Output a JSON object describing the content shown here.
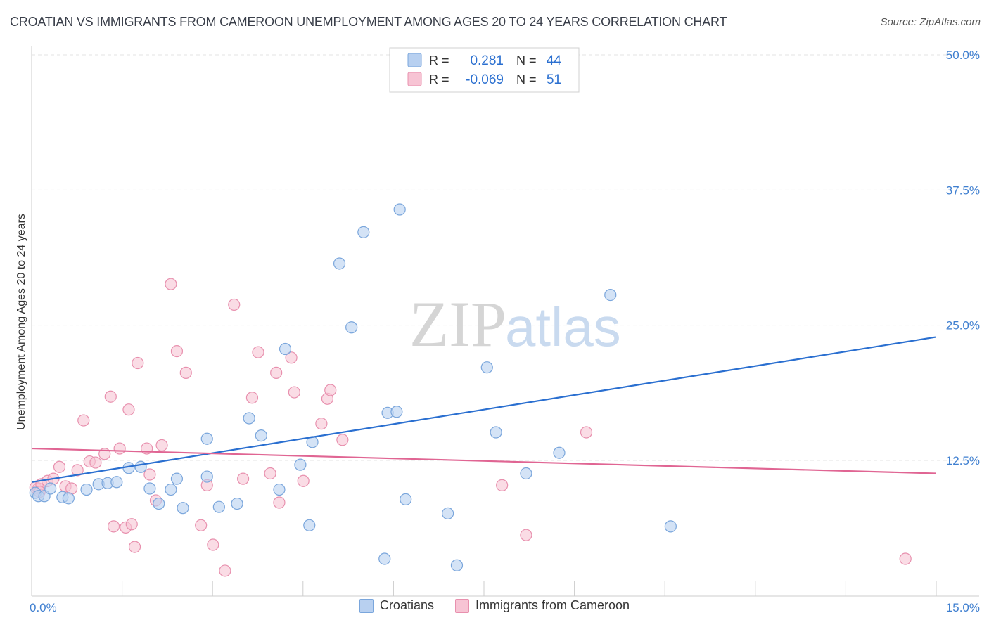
{
  "title": "CROATIAN VS IMMIGRANTS FROM CAMEROON UNEMPLOYMENT AMONG AGES 20 TO 24 YEARS CORRELATION CHART",
  "source": "Source: ZipAtlas.com",
  "watermark": {
    "zip": "ZIP",
    "atlas": "atlas"
  },
  "colors": {
    "blue_fill": "#b8d0f0",
    "blue_stroke": "#7aa6dc",
    "blue_line": "#2a6fd0",
    "pink_fill": "#f7c4d4",
    "pink_stroke": "#e890ae",
    "pink_line": "#e06593",
    "value_text": "#2a6fd0",
    "axis_tick_text": "#3f7fd0"
  },
  "legend_top": [
    {
      "series": "Croatians",
      "r_label": "R =",
      "r_value": "0.281",
      "n_label": "N =",
      "n_value": "44"
    },
    {
      "series": "Immigrants from Cameroon",
      "r_label": "R =",
      "r_value": "-0.069",
      "n_label": "N =",
      "n_value": "51"
    }
  ],
  "legend_bottom": [
    "Croatians",
    "Immigrants from Cameroon"
  ],
  "chart_data": {
    "type": "scatter",
    "title": "CROATIAN VS IMMIGRANTS FROM CAMEROON UNEMPLOYMENT AMONG AGES 20 TO 24 YEARS CORRELATION CHART",
    "xlabel": "",
    "ylabel": "Unemployment Among Ages 20 to 24 years",
    "xlim": [
      0,
      15
    ],
    "ylim": [
      0,
      50
    ],
    "x_tick_labels": [
      "0.0%",
      "15.0%"
    ],
    "y_ticks": [
      12.5,
      25,
      37.5,
      50
    ],
    "y_tick_labels": [
      "12.5%",
      "25.0%",
      "37.5%",
      "50.0%"
    ],
    "grid": true,
    "legend_position": "top-center",
    "series": [
      {
        "name": "Croatians",
        "r": 0.281,
        "n": 44,
        "trend": {
          "x": [
            0,
            15
          ],
          "y": [
            10.5,
            23.9
          ]
        },
        "points": [
          [
            0.05,
            9.5
          ],
          [
            0.1,
            9.2
          ],
          [
            0.2,
            9.2
          ],
          [
            0.3,
            9.9
          ],
          [
            0.5,
            9.1
          ],
          [
            0.6,
            9.0
          ],
          [
            0.9,
            9.8
          ],
          [
            1.1,
            10.3
          ],
          [
            1.25,
            10.4
          ],
          [
            1.4,
            10.5
          ],
          [
            1.6,
            11.8
          ],
          [
            1.8,
            11.9
          ],
          [
            1.95,
            9.9
          ],
          [
            2.1,
            8.5
          ],
          [
            2.3,
            9.8
          ],
          [
            2.4,
            10.8
          ],
          [
            2.5,
            8.1
          ],
          [
            2.9,
            11.0
          ],
          [
            2.9,
            14.5
          ],
          [
            3.1,
            8.2
          ],
          [
            3.4,
            8.5
          ],
          [
            3.6,
            16.4
          ],
          [
            3.8,
            14.8
          ],
          [
            4.1,
            9.8
          ],
          [
            4.2,
            22.8
          ],
          [
            4.45,
            12.1
          ],
          [
            4.6,
            6.5
          ],
          [
            4.65,
            14.2
          ],
          [
            5.1,
            30.7
          ],
          [
            5.3,
            24.8
          ],
          [
            5.5,
            33.6
          ],
          [
            5.85,
            3.4
          ],
          [
            6.1,
            35.7
          ],
          [
            5.9,
            16.9
          ],
          [
            6.05,
            17.0
          ],
          [
            6.2,
            8.9
          ],
          [
            6.9,
            7.6
          ],
          [
            7.05,
            2.8
          ],
          [
            7.55,
            21.1
          ],
          [
            7.7,
            15.1
          ],
          [
            8.2,
            11.3
          ],
          [
            8.75,
            13.2
          ],
          [
            9.6,
            27.8
          ],
          [
            10.6,
            6.4
          ]
        ]
      },
      {
        "name": "Immigrants from Cameroon",
        "r": -0.069,
        "n": 51,
        "trend": {
          "x": [
            0,
            15
          ],
          "y": [
            13.6,
            11.3
          ]
        },
        "points": [
          [
            0.05,
            10.0
          ],
          [
            0.1,
            9.9
          ],
          [
            0.15,
            10.3
          ],
          [
            0.25,
            10.6
          ],
          [
            0.35,
            10.8
          ],
          [
            0.45,
            11.9
          ],
          [
            0.55,
            10.1
          ],
          [
            0.65,
            9.9
          ],
          [
            0.75,
            11.6
          ],
          [
            0.85,
            16.2
          ],
          [
            0.95,
            12.4
          ],
          [
            1.05,
            12.3
          ],
          [
            1.2,
            13.1
          ],
          [
            1.3,
            18.4
          ],
          [
            1.35,
            6.4
          ],
          [
            1.45,
            13.6
          ],
          [
            1.55,
            6.3
          ],
          [
            1.6,
            17.2
          ],
          [
            1.65,
            6.6
          ],
          [
            1.7,
            4.5
          ],
          [
            1.75,
            21.5
          ],
          [
            1.9,
            13.6
          ],
          [
            1.95,
            11.2
          ],
          [
            2.05,
            8.8
          ],
          [
            2.15,
            13.9
          ],
          [
            2.3,
            28.8
          ],
          [
            2.4,
            22.6
          ],
          [
            2.55,
            20.6
          ],
          [
            2.8,
            6.5
          ],
          [
            2.9,
            10.2
          ],
          [
            3.0,
            4.7
          ],
          [
            3.2,
            2.3
          ],
          [
            3.35,
            26.9
          ],
          [
            3.5,
            10.8
          ],
          [
            3.65,
            18.3
          ],
          [
            3.75,
            22.5
          ],
          [
            3.95,
            11.3
          ],
          [
            4.05,
            20.6
          ],
          [
            4.1,
            8.6
          ],
          [
            4.3,
            22.0
          ],
          [
            4.35,
            18.8
          ],
          [
            4.5,
            10.6
          ],
          [
            4.8,
            15.9
          ],
          [
            4.9,
            18.2
          ],
          [
            4.95,
            19.0
          ],
          [
            5.15,
            14.4
          ],
          [
            7.8,
            10.2
          ],
          [
            8.2,
            5.6
          ],
          [
            9.2,
            15.1
          ],
          [
            14.5,
            3.4
          ],
          [
            0.12,
            9.6
          ]
        ]
      }
    ]
  }
}
